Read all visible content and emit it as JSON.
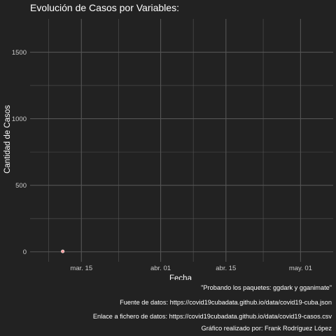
{
  "chart_data": {
    "type": "line",
    "title": "Evolución de Casos por Variables:",
    "xlabel": "Fecha",
    "ylabel": "Cantidad de Casos",
    "x_type": "date",
    "xlim": [
      "2020-03-04",
      "2020-05-08"
    ],
    "ylim": [
      -75,
      1750
    ],
    "x_ticks": [
      {
        "date": "2020-03-15",
        "label": "mar. 15"
      },
      {
        "date": "2020-04-01",
        "label": "abr. 01"
      },
      {
        "date": "2020-04-15",
        "label": "abr. 15"
      },
      {
        "date": "2020-05-01",
        "label": "may. 01"
      }
    ],
    "x_minor_ticks": [
      "2020-03-08",
      "2020-03-23",
      "2020-04-08",
      "2020-04-23"
    ],
    "y_ticks": [
      0,
      500,
      1000,
      1500
    ],
    "y_minor_ticks": [
      250,
      750,
      1250
    ],
    "grid": true,
    "background": "#222222",
    "grid_color": "#555555",
    "series": [
      {
        "color": "#ff9a9a",
        "points": [
          {
            "x": "2020-03-11",
            "y": 3
          }
        ]
      }
    ]
  },
  "captions": [
    "\"Probando los paquetes: ggdark y gganimate\"",
    "Fuente de datos: https://covid19cubadata.github.io/data/covid19-cuba.json",
    "Enlace a fichero de datos: https://covid19cubadata.github.io/data/covid19-casos.csv",
    "Gráfico realizado por: Frank Rodríguez López"
  ]
}
